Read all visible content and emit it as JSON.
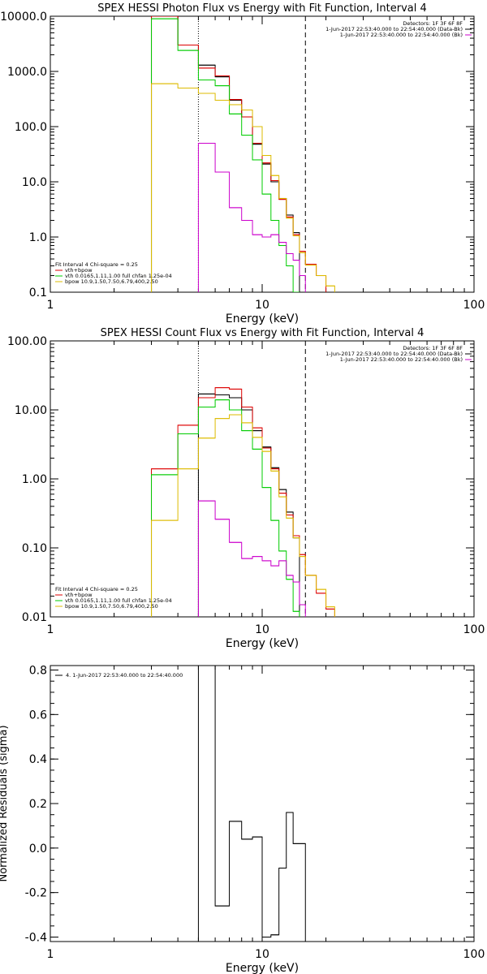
{
  "colors": {
    "data": "#000000",
    "fit_total": "#dd0000",
    "vth": "#00cc00",
    "bpow": "#ddbb00",
    "background": "#cc00cc"
  },
  "chart_data": [
    {
      "type": "line",
      "title": "SPEX HESSI Photon Flux vs Energy with Fit Function, Interval 4",
      "xlabel": "Energy (keV)",
      "ylabel": "",
      "xscale": "log",
      "yscale": "log",
      "xlim": [
        1,
        100
      ],
      "ylim": [
        0.1,
        10000
      ],
      "xticks": [
        "1",
        "10",
        "100"
      ],
      "yticks": [
        "0.1",
        "1.0",
        "10.0",
        "100.0",
        "1000.0",
        "10000.0"
      ],
      "grid": false,
      "dashed_vlines": [
        5.0,
        16.0
      ],
      "legend_topright": [
        "Detectors: 1F 3F 6F 8F",
        "1-Jun-2017 22:53:40.000 to 22:54:40.000 (Data-Bk)",
        "1-Jun-2017 22:53:40.000 to 22:54:40.000 (Bk)"
      ],
      "legend_bottomleft": [
        "Fit Interval 4   Chi-square = 0.25",
        "vth+bpow",
        "vth 0.0165,1.11,1.00  full chfan 1.25e-04",
        "bpow 10.9,1.50,7.50,6.79,400,2.50"
      ],
      "bin_edges": [
        3.0,
        4.0,
        5.0,
        6.0,
        7.0,
        8.0,
        9.0,
        10.0,
        11.0,
        12.0,
        13.0,
        14.0,
        15.0,
        16.0,
        18.0,
        20.0,
        22.0,
        24.0
      ],
      "series": [
        {
          "name": "Data-Bk",
          "color_key": "data",
          "values": [
            11000,
            3000,
            1300,
            800,
            300,
            150,
            48,
            21,
            10,
            5,
            2.5,
            1.2,
            null,
            null,
            null,
            null,
            null
          ]
        },
        {
          "name": "vth+bpow",
          "color_key": "fit_total",
          "values": [
            11000,
            3000,
            1150,
            830,
            310,
            150,
            50,
            22,
            10.5,
            4.8,
            2.3,
            1.1,
            0.55,
            0.32,
            0.2,
            null,
            null
          ]
        },
        {
          "name": "vth",
          "color_key": "vth",
          "values": [
            9000,
            2400,
            700,
            550,
            170,
            70,
            25,
            6,
            2,
            0.7,
            0.3,
            0.1,
            null,
            null,
            null,
            null,
            null
          ]
        },
        {
          "name": "bpow",
          "color_key": "bpow",
          "values": [
            600,
            500,
            400,
            300,
            250,
            200,
            100,
            30,
            13,
            5,
            2.2,
            1.05,
            0.52,
            0.31,
            0.2,
            0.13,
            null
          ]
        },
        {
          "name": "Bk",
          "color_key": "background",
          "values": [
            null,
            null,
            50,
            15,
            3.4,
            2,
            1.1,
            1.0,
            1.1,
            0.8,
            0.5,
            0.38,
            0.2,
            null,
            null,
            null,
            null
          ]
        }
      ]
    },
    {
      "type": "line",
      "title": "SPEX HESSI Count Flux vs Energy with Fit Function, Interval 4",
      "xlabel": "Energy (keV)",
      "ylabel": "",
      "xscale": "log",
      "yscale": "log",
      "xlim": [
        1,
        100
      ],
      "ylim": [
        0.01,
        100
      ],
      "xticks": [
        "1",
        "10",
        "100"
      ],
      "yticks": [
        "0.01",
        "0.10",
        "1.00",
        "10.00",
        "100.00"
      ],
      "grid": false,
      "dashed_vlines": [
        5.0,
        16.0
      ],
      "legend_topright": [
        "Detectors: 1F 3F 6F 8F",
        "1-Jun-2017 22:53:40.000 to 22:54:40.000 (Data-Bk)",
        "1-Jun-2017 22:53:40.000 to 22:54:40.000 (Bk)"
      ],
      "legend_bottomleft": [
        "Fit Interval 4   Chi-square = 0.25",
        "vth+bpow",
        "vth 0.0165,1.11,1.00  full chfan 1.25e-04",
        "bpow 10.9,1.50,7.50,6.79,400,2.50"
      ],
      "bin_edges": [
        3.0,
        4.0,
        5.0,
        6.0,
        7.0,
        8.0,
        9.0,
        10.0,
        11.0,
        12.0,
        13.0,
        14.0,
        15.0,
        16.0,
        18.0,
        20.0,
        22.0,
        24.0
      ],
      "series": [
        {
          "name": "Data-Bk",
          "color_key": "data",
          "values": [
            null,
            null,
            17,
            16.5,
            15,
            10,
            5,
            2.9,
            1.45,
            0.7,
            0.33,
            0.14,
            null,
            null,
            null,
            null,
            null
          ]
        },
        {
          "name": "vth+bpow",
          "color_key": "fit_total",
          "values": [
            1.4,
            6,
            15,
            21,
            20,
            11,
            5.5,
            2.8,
            1.4,
            0.62,
            0.3,
            0.15,
            0.08,
            0.04,
            0.022,
            0.013,
            null
          ]
        },
        {
          "name": "vth",
          "color_key": "vth",
          "values": [
            1.15,
            4.5,
            11,
            14,
            10,
            5,
            2.7,
            0.75,
            0.25,
            0.09,
            0.035,
            0.012,
            null,
            null,
            null,
            null,
            null
          ]
        },
        {
          "name": "bpow",
          "color_key": "bpow",
          "values": [
            0.25,
            1.4,
            3.9,
            7.5,
            8.5,
            6.5,
            4,
            2.5,
            1.3,
            0.55,
            0.27,
            0.14,
            0.075,
            0.04,
            0.025,
            0.014,
            null
          ]
        },
        {
          "name": "Bk",
          "color_key": "background",
          "values": [
            null,
            null,
            0.48,
            0.26,
            0.12,
            0.07,
            0.075,
            0.065,
            0.055,
            0.065,
            0.04,
            0.032,
            0.015,
            null,
            null,
            null,
            null
          ]
        }
      ]
    },
    {
      "type": "line",
      "title": "",
      "xlabel": "Energy (keV)",
      "ylabel": "Normalized Residuals (sigma)",
      "xscale": "log",
      "yscale": "linear",
      "xlim": [
        1,
        100
      ],
      "ylim": [
        -0.42,
        0.82
      ],
      "xticks": [
        "1",
        "10",
        "100"
      ],
      "yticks": [
        "-0.4",
        "-0.2",
        "0.0",
        "0.2",
        "0.4",
        "0.6",
        "0.8"
      ],
      "grid": false,
      "legend_topleft": [
        "4.  1-Jun-2017 22:53:40.000 to 22:54:40.000"
      ],
      "bin_edges": [
        5.0,
        6.0,
        7.0,
        8.0,
        9.0,
        10.0,
        11.0,
        12.0,
        13.0,
        14.0,
        15.0,
        16.0
      ],
      "series": [
        {
          "name": "4.",
          "color_key": "data",
          "values": [
            0.82,
            -0.26,
            0.12,
            0.04,
            0.05,
            -0.4,
            -0.39,
            -0.09,
            0.16,
            0.02,
            0.02
          ]
        }
      ]
    }
  ]
}
